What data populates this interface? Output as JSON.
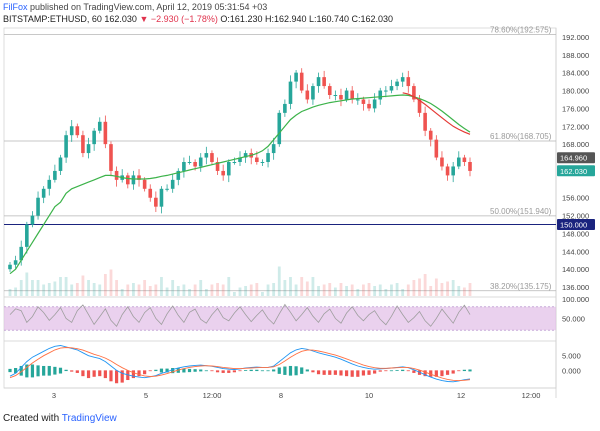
{
  "header": {
    "author": "FilFox",
    "published_text": " published on TradingView.com, April 12, 2019 05:31:54 +03",
    "symbol": "BITSTAMP:ETHUSD, 60",
    "last": "162.030",
    "change": "▼ −2.930 (−1.78%)",
    "ohlc": "O:161.230 H:162.940 L:160.740 C:162.030"
  },
  "footer": {
    "created_with": "Created with",
    "brand": "TradingView"
  },
  "colors": {
    "up": "#26a69a",
    "down": "#ef5350",
    "ma_slow": "#3cb34a",
    "ma_fast": "#e53935",
    "fib": "#b5b5b5",
    "hline": "#1a237e",
    "rsi_band": "#e1bee7",
    "macd_line": "#2196f3",
    "signal_line": "#ff7043"
  },
  "chart_data": [
    {
      "type": "line",
      "title": "",
      "price_axis_ticks": [
        "192.000",
        "188.000",
        "184.000",
        "180.000",
        "176.000",
        "172.000",
        "168.000",
        "156.000",
        "152.000",
        "148.000",
        "144.000",
        "140.000",
        "136.000"
      ],
      "ylim": [
        134,
        194
      ],
      "x_axis_ticks": [
        "3",
        "5",
        "12:00",
        "8",
        "10",
        "12",
        "12:00"
      ],
      "price_badges": [
        {
          "label": "164.960",
          "value": 164.96,
          "color": "#555555"
        },
        {
          "label": "162.030",
          "value": 162.03,
          "color": "#26a69a"
        },
        {
          "label": "150.000",
          "value": 150.0,
          "color": "#1a237e"
        }
      ],
      "fib_levels": [
        {
          "label": "78.60%(192.575)",
          "value": 192.575
        },
        {
          "label": "61.80%(168.705)",
          "value": 168.705
        },
        {
          "label": "50.00%(151.940)",
          "value": 151.94
        },
        {
          "label": "38.20%(135.175)",
          "value": 135.175
        }
      ],
      "horizontal_line": 150.0,
      "series": [
        {
          "name": "",
          "kind": "close",
          "values": [
            141,
            142,
            145,
            150,
            152,
            156,
            158,
            160,
            162,
            165,
            170,
            172,
            170,
            166,
            168,
            171,
            173,
            168,
            162,
            160,
            161,
            159,
            161,
            160,
            158,
            156,
            154,
            158,
            158,
            160,
            162,
            164,
            164,
            163,
            165,
            166,
            164,
            162,
            161,
            164,
            164,
            165,
            166,
            165,
            164,
            164,
            166,
            168,
            175,
            177,
            182,
            184,
            180,
            178,
            181,
            183,
            181,
            179,
            179,
            178,
            180,
            178,
            178,
            177,
            176,
            178,
            180,
            180,
            181,
            182,
            183,
            181,
            178,
            175,
            171,
            169,
            165,
            163,
            161,
            163,
            165,
            164,
            162
          ]
        },
        {
          "name": "",
          "kind": "ma_slow",
          "values": [
            139,
            140,
            142,
            144,
            146,
            148,
            150,
            152,
            154,
            155,
            157,
            158,
            158.5,
            159,
            159.5,
            160,
            160.5,
            161,
            161,
            160.8,
            160.5,
            160.3,
            160.2,
            160.2,
            160.2,
            160.3,
            160.5,
            160.8,
            161,
            161.3,
            161.6,
            161.9,
            162.2,
            162.5,
            162.8,
            163.1,
            163.4,
            163.7,
            164,
            164.3,
            164.6,
            164.9,
            165.2,
            165.5,
            165.9,
            166.5,
            167.5,
            169,
            170.5,
            172,
            173.5,
            174.5,
            175.3,
            175.8,
            176.3,
            176.7,
            177,
            177.3,
            177.5,
            177.7,
            177.9,
            178.1,
            178.2,
            178.3,
            178.4,
            178.5,
            178.6,
            178.7,
            178.8,
            178.9,
            179,
            178.9,
            178.6,
            178.2,
            177.7,
            177.1,
            176.3,
            175.4,
            174.4,
            173.4,
            172.4,
            171.5,
            170.7
          ]
        },
        {
          "name": "",
          "kind": "ma_fast",
          "values": [
            null,
            null,
            null,
            null,
            null,
            null,
            null,
            null,
            null,
            null,
            null,
            null,
            null,
            null,
            null,
            null,
            null,
            null,
            null,
            null,
            null,
            null,
            null,
            null,
            null,
            null,
            null,
            null,
            null,
            null,
            null,
            null,
            null,
            null,
            null,
            null,
            null,
            null,
            null,
            null,
            null,
            null,
            null,
            null,
            null,
            null,
            null,
            null,
            null,
            null,
            null,
            null,
            null,
            null,
            null,
            null,
            null,
            null,
            null,
            null,
            null,
            null,
            null,
            null,
            null,
            null,
            null,
            null,
            null,
            null,
            179.5,
            179.2,
            178.6,
            177.8,
            176.9,
            175.9,
            174.9,
            173.9,
            172.9,
            172,
            171.3,
            170.7,
            170.2
          ]
        }
      ]
    },
    {
      "type": "line",
      "title": "",
      "y_axis_ticks": [
        "100.000",
        "50.000"
      ],
      "ylim": [
        0,
        100
      ],
      "band": [
        20,
        80
      ],
      "series": [
        {
          "name": "",
          "values": [
            60,
            75,
            70,
            40,
            55,
            80,
            65,
            45,
            60,
            78,
            50,
            40,
            70,
            85,
            60,
            35,
            55,
            75,
            45,
            30,
            60,
            80,
            55,
            40,
            65,
            78,
            50,
            35,
            62,
            82,
            58,
            40,
            66,
            74,
            48,
            38,
            60,
            76,
            52,
            44,
            64,
            80,
            60,
            42,
            58,
            72,
            50,
            36,
            62,
            86,
            66,
            44,
            60,
            78,
            56,
            40,
            62,
            74,
            50,
            38,
            64,
            80,
            58,
            44,
            60,
            70,
            48,
            34,
            56,
            82,
            60,
            40,
            52,
            68,
            44,
            30,
            50,
            74,
            56,
            38,
            66,
            84,
            60
          ]
        }
      ]
    },
    {
      "type": "line",
      "title": "",
      "y_axis_ticks": [
        "5.000",
        "0.000"
      ],
      "ylim": [
        -5,
        9
      ],
      "series": [
        {
          "name": "",
          "kind": "macd",
          "values": [
            -2,
            -1,
            1,
            3,
            4.5,
            5.5,
            6.5,
            7.5,
            8.2,
            8.5,
            8,
            7.5,
            7,
            6,
            5,
            4.5,
            4,
            3,
            1.5,
            0,
            -1,
            -1.5,
            -2,
            -2.3,
            -2.5,
            -2.2,
            -1.8,
            -1,
            -0.5,
            0.3,
            0.8,
            1.2,
            1.5,
            1.7,
            1.8,
            1.6,
            1.4,
            1,
            0.6,
            0.4,
            0.3,
            0.5,
            0.8,
            1,
            1.1,
            1,
            1,
            1.5,
            3,
            4.5,
            6,
            7,
            7.5,
            7.2,
            6.6,
            6,
            5.5,
            5,
            4.5,
            3.8,
            3,
            2.2,
            1.5,
            1,
            0.6,
            0.4,
            0.5,
            0.6,
            0.8,
            1,
            1.2,
            0.9,
            0.2,
            -0.6,
            -1.5,
            -2.3,
            -3,
            -3.5,
            -3.8,
            -3.9,
            -3.6,
            -3.2,
            -2.9
          ]
        },
        {
          "name": "",
          "kind": "signal",
          "values": [
            -2.5,
            -1.8,
            -0.5,
            1,
            2.5,
            3.8,
            5,
            6,
            7,
            7.6,
            7.8,
            7.7,
            7.4,
            6.9,
            6.2,
            5.5,
            4.9,
            4.2,
            3.2,
            2,
            0.9,
            0,
            -0.8,
            -1.4,
            -1.9,
            -2.1,
            -2,
            -1.6,
            -1.1,
            -0.5,
            0.1,
            0.6,
            1,
            1.3,
            1.5,
            1.6,
            1.5,
            1.3,
            1,
            0.8,
            0.6,
            0.6,
            0.7,
            0.8,
            0.9,
            1,
            1,
            1.2,
            2,
            3.2,
            4.5,
            5.6,
            6.5,
            6.9,
            6.9,
            6.6,
            6.2,
            5.7,
            5.2,
            4.6,
            3.9,
            3.2,
            2.5,
            1.8,
            1.3,
            0.9,
            0.7,
            0.7,
            0.8,
            0.9,
            1,
            1,
            0.6,
            0.1,
            -0.6,
            -1.3,
            -2,
            -2.6,
            -3.1,
            -3.4,
            -3.5,
            -3.4,
            -3.2
          ]
        }
      ]
    }
  ]
}
